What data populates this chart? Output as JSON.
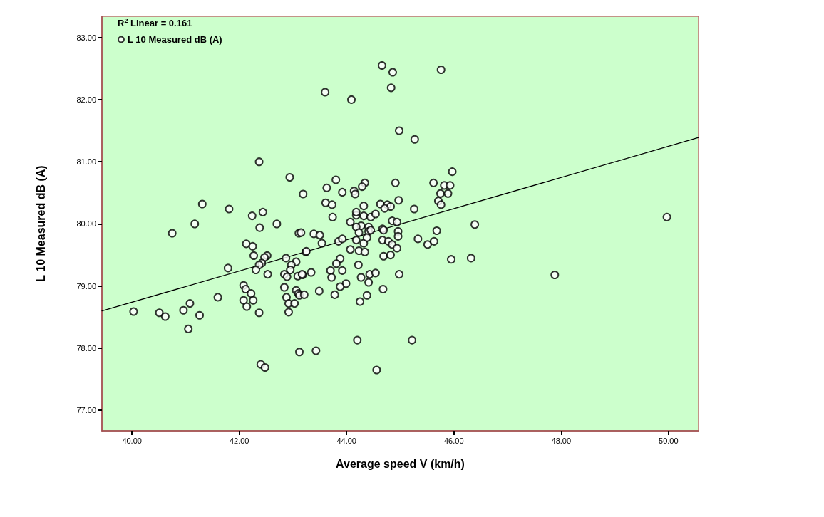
{
  "chart_data": {
    "type": "scatter",
    "xlabel": "Average speed V (km/h)",
    "ylabel": "L 10 Measured dB (A)",
    "annotations": [
      "R$^{2}$ Linear = 0.161"
    ],
    "xlim": [
      39.44,
      50.56
    ],
    "ylim": [
      76.67,
      83.34
    ],
    "xticks": [
      {
        "value": 40,
        "label": "40.00"
      },
      {
        "value": 42,
        "label": "42.00"
      },
      {
        "value": 44,
        "label": "44.00"
      },
      {
        "value": 46,
        "label": "46.00"
      },
      {
        "value": 48,
        "label": "48.00"
      },
      {
        "value": 50,
        "label": "50.00"
      }
    ],
    "yticks": [
      {
        "value": 77,
        "label": "77.00"
      },
      {
        "value": 78,
        "label": "78.00"
      },
      {
        "value": 79,
        "label": "79.00"
      },
      {
        "value": 80,
        "label": "80.00"
      },
      {
        "value": 81,
        "label": "81.00"
      },
      {
        "value": 82,
        "label": "82.00"
      },
      {
        "value": 83,
        "label": "83.00"
      }
    ],
    "grid": false,
    "legend": "top left",
    "series": [
      {
        "name": "L 10 Measured dB (A)",
        "marker": "circle",
        "color": "#000000",
        "x": [
          44.66,
          44.86,
          45.76,
          43.6,
          44.09,
          44.83,
          44.98,
          45.27,
          45.97,
          42.37,
          42.94,
          41.31,
          41.81,
          41.17,
          40.75,
          40.03,
          40.51,
          40.62,
          40.96,
          41.08,
          41.26,
          41.05,
          41.6,
          41.79,
          42.24,
          42.44,
          42.38,
          42.7,
          43.11,
          42.13,
          42.25,
          42.27,
          42.52,
          42.47,
          42.42,
          42.37,
          42.31,
          42.53,
          42.87,
          43.06,
          42.97,
          42.95,
          42.84,
          42.89,
          43.09,
          43.18,
          43.24,
          42.08,
          42.12,
          42.22,
          42.08,
          42.26,
          42.14,
          42.37,
          42.84,
          43.06,
          43.1,
          43.12,
          42.88,
          42.92,
          43.03,
          42.92,
          43.12,
          42.4,
          42.48,
          43.74,
          44.07,
          44.18,
          44.32,
          44.45,
          44.54,
          44.27,
          44.41,
          44.18,
          44.23,
          44.41,
          44.45,
          44.67,
          44.85,
          44.94,
          44.96,
          44.96,
          43.15,
          43.39,
          43.5,
          43.54,
          43.85,
          43.92,
          44.18,
          44.32,
          44.38,
          44.67,
          44.78,
          44.85,
          44.94,
          44.69,
          45.33,
          45.51,
          45.63,
          45.68,
          46.39,
          45.95,
          46.32,
          44.07,
          44.23,
          44.34,
          43.25,
          43.88,
          43.81,
          44.22,
          44.69,
          44.82,
          43.7,
          43.92,
          43.34,
          43.17,
          43.72,
          44.27,
          44.43,
          44.54,
          44.98,
          43.99,
          43.88,
          44.41,
          43.49,
          43.21,
          43.78,
          44.38,
          44.68,
          44.25,
          44.2,
          45.22,
          43.43,
          44.56,
          43.19,
          43.63,
          43.8,
          43.92,
          44.14,
          44.16,
          44.34,
          44.29,
          44.91,
          45.62,
          45.82,
          45.93,
          45.75,
          45.89,
          45.71,
          45.76,
          44.97,
          43.61,
          43.73,
          44.32,
          44.63,
          44.76,
          44.82,
          45.26,
          44.71,
          44.18,
          47.88,
          49.97
        ],
        "values": [
          82.55,
          82.44,
          82.48,
          82.12,
          82.0,
          82.19,
          81.5,
          81.36,
          80.84,
          81.0,
          80.75,
          80.32,
          80.24,
          80.0,
          79.85,
          78.59,
          78.57,
          78.51,
          78.61,
          78.72,
          78.53,
          78.31,
          78.82,
          79.29,
          80.13,
          80.19,
          79.94,
          80.0,
          79.85,
          79.68,
          79.64,
          79.49,
          79.49,
          79.46,
          79.37,
          79.34,
          79.26,
          79.19,
          79.45,
          79.39,
          79.34,
          79.26,
          79.19,
          79.15,
          79.16,
          79.18,
          79.55,
          79.01,
          78.95,
          78.88,
          78.77,
          78.77,
          78.67,
          78.57,
          78.98,
          78.93,
          78.88,
          78.85,
          78.82,
          78.72,
          78.72,
          78.58,
          77.94,
          77.74,
          77.69,
          80.11,
          80.03,
          80.14,
          80.13,
          80.11,
          80.16,
          79.97,
          79.95,
          79.95,
          79.86,
          79.88,
          79.9,
          79.92,
          80.05,
          80.03,
          79.88,
          79.8,
          79.86,
          79.84,
          79.82,
          79.69,
          79.72,
          79.76,
          79.74,
          79.69,
          79.78,
          79.74,
          79.72,
          79.67,
          79.61,
          79.9,
          79.76,
          79.67,
          79.72,
          79.89,
          79.99,
          79.43,
          79.45,
          79.59,
          79.57,
          79.55,
          79.56,
          79.44,
          79.36,
          79.34,
          79.48,
          79.5,
          79.25,
          79.25,
          79.22,
          79.19,
          79.14,
          79.14,
          79.19,
          79.21,
          79.19,
          79.04,
          78.99,
          79.06,
          78.92,
          78.86,
          78.86,
          78.85,
          78.95,
          78.75,
          78.13,
          78.13,
          77.96,
          77.65,
          80.48,
          80.58,
          80.71,
          80.51,
          80.53,
          80.48,
          80.66,
          80.6,
          80.66,
          80.66,
          80.62,
          80.62,
          80.49,
          80.49,
          80.37,
          80.31,
          80.38,
          80.34,
          80.31,
          80.29,
          80.32,
          80.31,
          80.28,
          80.24,
          80.25,
          80.19,
          79.18,
          80.11
        ]
      },
      {
        "type": "line",
        "marker": "none",
        "color": "#000000",
        "x": [
          39.44,
          50.56
        ],
        "values": [
          78.6,
          81.39
        ]
      }
    ]
  }
}
